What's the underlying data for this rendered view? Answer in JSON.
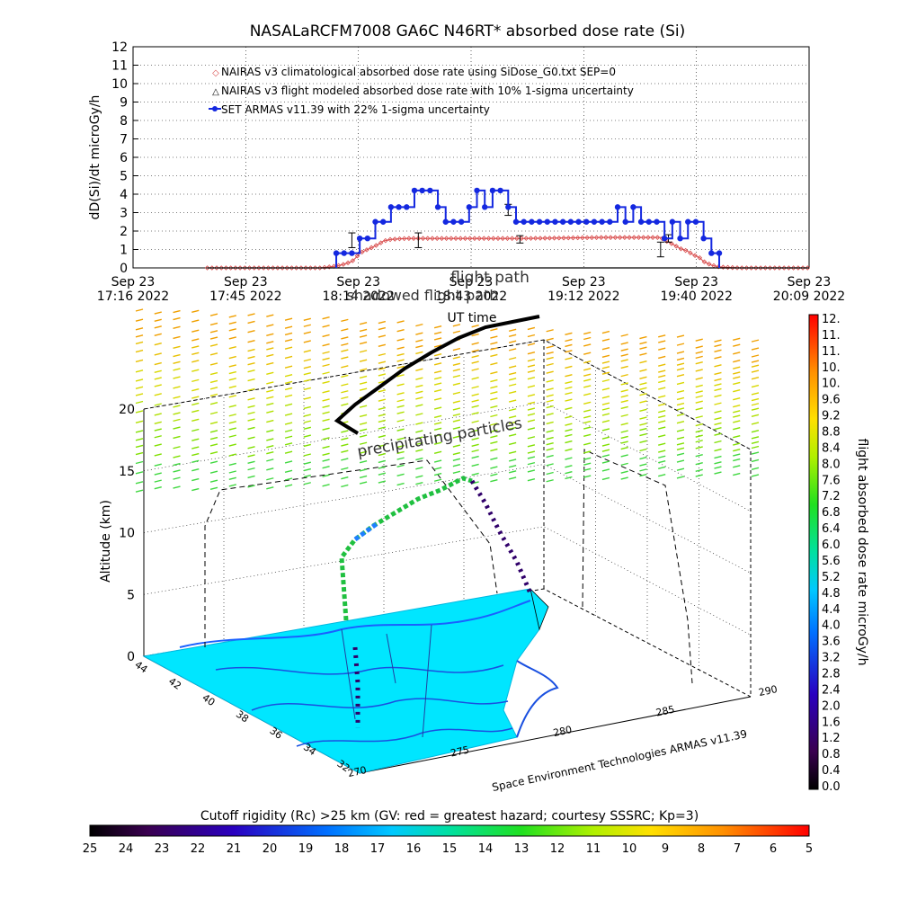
{
  "title": "NASALaRCFM7008   GA6C N46RT* absorbed dose rate (Si)",
  "top_chart": {
    "ylabel": "dD(Si)/dt microGy/h",
    "xlabel": "UT time",
    "x_ticks": [
      {
        "date": "Sep 23",
        "time": "17:16 2022"
      },
      {
        "date": "Sep 23",
        "time": "17:45 2022"
      },
      {
        "date": "Sep 23",
        "time": "18:14 2022"
      },
      {
        "date": "Sep 23",
        "time": "18:43 2022"
      },
      {
        "date": "Sep 23",
        "time": "19:12 2022"
      },
      {
        "date": "Sep 23",
        "time": "19:40 2022"
      },
      {
        "date": "Sep 23",
        "time": "20:09 2022"
      }
    ],
    "legend": [
      "NAIRAS v3 climatological absorbed dose rate using SiDose_G0.txt SEP=0",
      "NAIRAS v3 flight modeled absorbed dose rate with 10% 1-sigma uncertainty",
      "SET ARMAS v11.39 with 22% 1-sigma uncertainty"
    ],
    "colors": {
      "nairas_clim": "#d84a4a",
      "nairas_flight": "#000000",
      "armas": "#1428e0"
    }
  },
  "middle_labels": {
    "overlap_text": "flight path",
    "overlap_text2": "shadowed flight path"
  },
  "chart_data": [
    {
      "type": "line",
      "title": "NASALaRCFM7008   GA6C N46RT* absorbed dose rate (Si)",
      "xlabel": "UT time",
      "ylabel": "dD(Si)/dt microGy/h",
      "ylim": [
        0,
        12
      ],
      "xlim_minutes_after_17_16": [
        0,
        173
      ],
      "y_ticks": [
        0,
        1,
        2,
        3,
        4,
        5,
        6,
        7,
        8,
        9,
        10,
        11,
        12
      ],
      "grid": true,
      "legend_position": "top-left",
      "series": [
        {
          "name": "NAIRAS v3 climatological absorbed dose rate using SiDose_G0.txt SEP=0",
          "marker": "diamond",
          "x": [
            19,
            35,
            48,
            52,
            54,
            56,
            57,
            58,
            60,
            62,
            63,
            64,
            66,
            70,
            80,
            100,
            120,
            135,
            136,
            138,
            140,
            142,
            143,
            145,
            146,
            148,
            150,
            155,
            173
          ],
          "y": [
            0,
            0,
            0,
            0.1,
            0.2,
            0.35,
            0.55,
            0.8,
            1.0,
            1.2,
            1.3,
            1.45,
            1.55,
            1.6,
            1.6,
            1.6,
            1.65,
            1.65,
            1.5,
            1.3,
            1.05,
            0.9,
            0.75,
            0.55,
            0.35,
            0.15,
            0.05,
            0,
            0
          ]
        },
        {
          "name": "NAIRAS v3 flight modeled absorbed dose rate with 10% 1-sigma uncertainty",
          "marker": "triangle",
          "error_bars": [
            {
              "x": 56,
              "y": 1.5,
              "err": 0.4
            },
            {
              "x": 73,
              "y": 1.5,
              "err": 0.4
            },
            {
              "x": 96,
              "y": 3.15,
              "err": 0.3
            },
            {
              "x": 99,
              "y": 1.55,
              "err": 0.2
            },
            {
              "x": 135,
              "y": 1.0,
              "err": 0.4
            },
            {
              "x": 137,
              "y": 1.6,
              "err": 0.2
            }
          ]
        },
        {
          "name": "SET ARMAS v11.39 with 22% 1-sigma uncertainty",
          "marker": "circle",
          "x": [
            52,
            54,
            56,
            58,
            60,
            62,
            64,
            66,
            68,
            70,
            72,
            74,
            76,
            78,
            80,
            82,
            84,
            86,
            88,
            90,
            92,
            94,
            96,
            98,
            100,
            102,
            104,
            106,
            108,
            110,
            112,
            114,
            116,
            118,
            120,
            122,
            124,
            126,
            128,
            130,
            132,
            134,
            136,
            138,
            140,
            142,
            144,
            146,
            148,
            150
          ],
          "y": [
            0.8,
            0.8,
            0.8,
            1.6,
            1.6,
            2.5,
            2.5,
            3.3,
            3.3,
            3.3,
            4.2,
            4.2,
            4.2,
            3.3,
            2.5,
            2.5,
            2.5,
            3.3,
            4.2,
            3.3,
            4.2,
            4.2,
            3.3,
            2.5,
            2.5,
            2.5,
            2.5,
            2.5,
            2.5,
            2.5,
            2.5,
            2.5,
            2.5,
            2.5,
            2.5,
            2.5,
            3.3,
            2.5,
            3.3,
            2.5,
            2.5,
            2.5,
            1.6,
            2.5,
            1.6,
            2.5,
            2.5,
            1.6,
            0.8,
            0.8
          ]
        }
      ]
    },
    {
      "type": "scatter",
      "title": "",
      "zlabel": "Altitude (km)",
      "z_ticks": [
        0,
        5,
        10,
        15,
        20
      ],
      "lat_ticks": [
        "44",
        "42",
        "40",
        "38",
        "36",
        "34",
        "32"
      ],
      "lon_ticks": [
        "270",
        "275",
        "280",
        "285",
        "290"
      ],
      "annotations": [
        "precipitating particles",
        "Space Environment Technologies ARMAS v11.39"
      ]
    }
  ],
  "right_colorbar": {
    "label": "flight absorbed dose rate microGy/h",
    "ticks": [
      "12.",
      "11.",
      "11.",
      "10.",
      "10.",
      "9.6",
      "9.2",
      "8.8",
      "8.4",
      "8.0",
      "7.6",
      "7.2",
      "6.8",
      "6.4",
      "6.0",
      "5.6",
      "5.2",
      "4.8",
      "4.4",
      "4.0",
      "3.6",
      "3.2",
      "2.8",
      "2.4",
      "2.0",
      "1.6",
      "1.2",
      "0.8",
      "0.4",
      "0.0"
    ]
  },
  "bottom_colorbar": {
    "label": "Cutoff rigidity (Rc) >25 km (GV: red = greatest hazard; courtesy SSSRC; Kp=3)",
    "ticks": [
      "25",
      "24",
      "23",
      "22",
      "21",
      "20",
      "19",
      "18",
      "17",
      "16",
      "15",
      "14",
      "13",
      "12",
      "11",
      "10",
      "9",
      "8",
      "7",
      "6",
      "5"
    ]
  }
}
